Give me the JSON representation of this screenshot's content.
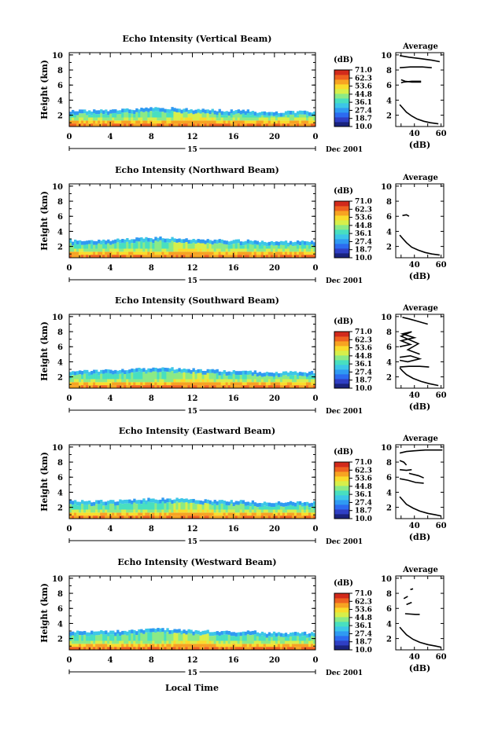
{
  "figure": {
    "xlabel": "Local Time",
    "date_label": "Dec 2001",
    "day_label": "15",
    "colorbar_unit": "(dB)",
    "colorbar_ticks": [
      "71.0",
      "62.3",
      "53.6",
      "44.8",
      "36.1",
      "27.4",
      "18.7",
      "10.0"
    ],
    "colormap": [
      "#1a237e",
      "#2f3fc4",
      "#2c6bf0",
      "#2f9af2",
      "#3cc6e8",
      "#48dfc0",
      "#8bea86",
      "#d7ef4a",
      "#f9dc2b",
      "#f7a322",
      "#ee6220",
      "#d22a1b"
    ]
  },
  "chart_data": [
    {
      "type": "heatmap",
      "title": "Echo Intensity (Vertical Beam)",
      "ylabel": "Height (km)",
      "x_ticks": [
        "0",
        "4",
        "8",
        "12",
        "16",
        "20",
        "0"
      ],
      "y_ticks": [
        "2",
        "4",
        "6",
        "8",
        "10"
      ],
      "xlim": [
        0,
        24
      ],
      "ylim": [
        0.5,
        10.3
      ],
      "echo_top_km": 2.6,
      "side_profile": {
        "title": "Average",
        "xlabel": "(dB)",
        "x_ticks": [
          "40",
          "60"
        ],
        "y_ticks": [
          "2",
          "4",
          "6",
          "8",
          "10"
        ],
        "xlim": [
          26,
          62
        ],
        "ylim": [
          0.5,
          10.3
        ],
        "segments": [
          [
            [
              29,
              3.4
            ],
            [
              31,
              3.0
            ],
            [
              34,
              2.4
            ],
            [
              38,
              1.9
            ],
            [
              42,
              1.5
            ],
            [
              47,
              1.2
            ],
            [
              52,
              1.0
            ],
            [
              58,
              0.85
            ]
          ],
          [
            [
              30,
              6.7
            ],
            [
              33,
              6.5
            ],
            [
              38,
              6.4
            ],
            [
              41,
              6.4
            ],
            [
              45,
              6.4
            ]
          ],
          [
            [
              30,
              6.3
            ],
            [
              32,
              6.4
            ],
            [
              38,
              6.5
            ],
            [
              45,
              6.5
            ]
          ],
          [
            [
              29,
              8.3
            ],
            [
              37,
              8.4
            ],
            [
              46,
              8.4
            ],
            [
              53,
              8.3
            ]
          ],
          [
            [
              29,
              9.9
            ],
            [
              36,
              9.7
            ],
            [
              45,
              9.5
            ],
            [
              53,
              9.3
            ],
            [
              59,
              9.1
            ]
          ]
        ]
      }
    },
    {
      "type": "heatmap",
      "title": "Echo Intensity (Northward Beam)",
      "ylabel": "Height (km)",
      "x_ticks": [
        "0",
        "4",
        "8",
        "12",
        "16",
        "20",
        "0"
      ],
      "y_ticks": [
        "2",
        "4",
        "6",
        "8",
        "10"
      ],
      "xlim": [
        0,
        24
      ],
      "ylim": [
        0.5,
        10.3
      ],
      "echo_top_km": 2.8,
      "side_profile": {
        "title": "Average",
        "xlabel": "(dB)",
        "x_ticks": [
          "40",
          "60"
        ],
        "y_ticks": [
          "2",
          "4",
          "6",
          "8",
          "10"
        ],
        "xlim": [
          26,
          62
        ],
        "ylim": [
          0.5,
          10.3
        ],
        "segments": [
          [
            [
              29,
              3.5
            ],
            [
              31,
              3.1
            ],
            [
              34,
              2.5
            ],
            [
              38,
              1.9
            ],
            [
              43,
              1.5
            ],
            [
              48,
              1.2
            ],
            [
              53,
              1.0
            ],
            [
              59,
              0.85
            ]
          ],
          [
            [
              31,
              6.1
            ],
            [
              34,
              6.2
            ],
            [
              36,
              6.0
            ]
          ]
        ]
      }
    },
    {
      "type": "heatmap",
      "title": "Echo Intensity (Southward Beam)",
      "ylabel": "Height (km)",
      "x_ticks": [
        "0",
        "4",
        "8",
        "12",
        "16",
        "20",
        "0"
      ],
      "y_ticks": [
        "2",
        "4",
        "6",
        "8",
        "10"
      ],
      "xlim": [
        0,
        24
      ],
      "ylim": [
        0.5,
        10.3
      ],
      "echo_top_km": 2.8,
      "side_profile": {
        "title": "Average",
        "xlabel": "(dB)",
        "x_ticks": [
          "40",
          "60"
        ],
        "y_ticks": [
          "2",
          "4",
          "6",
          "8",
          "10"
        ],
        "xlim": [
          26,
          62
        ],
        "ylim": [
          0.5,
          10.3
        ],
        "segments": [
          [
            [
              29,
              3.2
            ],
            [
              31,
              2.8
            ],
            [
              34,
              2.3
            ],
            [
              39,
              1.8
            ],
            [
              45,
              1.4
            ],
            [
              51,
              1.1
            ],
            [
              58,
              0.85
            ]
          ],
          [
            [
              29,
              3.3
            ],
            [
              36,
              3.4
            ],
            [
              44,
              3.4
            ],
            [
              51,
              3.3
            ]
          ],
          [
            [
              29,
              4.6
            ],
            [
              37,
              4.8
            ],
            [
              44,
              4.4
            ],
            [
              35,
              4.0
            ],
            [
              29,
              4.2
            ]
          ],
          [
            [
              29,
              6.0
            ],
            [
              37,
              6.3
            ],
            [
              30,
              6.8
            ],
            [
              40,
              7.2
            ],
            [
              31,
              7.7
            ],
            [
              38,
              8.0
            ],
            [
              30,
              7.4
            ],
            [
              43,
              6.4
            ],
            [
              35,
              5.6
            ],
            [
              44,
              5.0
            ]
          ],
          [
            [
              31,
              9.9
            ],
            [
              36,
              9.7
            ],
            [
              42,
              9.4
            ],
            [
              46,
              9.2
            ],
            [
              50,
              9.0
            ]
          ]
        ]
      }
    },
    {
      "type": "heatmap",
      "title": "Echo Intensity (Eastward Beam)",
      "ylabel": "Height (km)",
      "x_ticks": [
        "0",
        "4",
        "8",
        "12",
        "16",
        "20",
        "0"
      ],
      "y_ticks": [
        "2",
        "4",
        "6",
        "8",
        "10"
      ],
      "xlim": [
        0,
        24
      ],
      "ylim": [
        0.5,
        10.3
      ],
      "echo_top_km": 2.8,
      "side_profile": {
        "title": "Average",
        "xlabel": "(dB)",
        "x_ticks": [
          "40",
          "60"
        ],
        "y_ticks": [
          "2",
          "4",
          "6",
          "8",
          "10"
        ],
        "xlim": [
          26,
          62
        ],
        "ylim": [
          0.5,
          10.3
        ],
        "segments": [
          [
            [
              29,
              3.4
            ],
            [
              31,
              3.0
            ],
            [
              34,
              2.4
            ],
            [
              39,
              1.9
            ],
            [
              44,
              1.5
            ],
            [
              50,
              1.2
            ],
            [
              56,
              1.0
            ],
            [
              60,
              0.85
            ]
          ],
          [
            [
              29,
              5.8
            ],
            [
              35,
              5.6
            ],
            [
              41,
              5.3
            ],
            [
              47,
              5.2
            ]
          ],
          [
            [
              36,
              6.5
            ],
            [
              43,
              6.2
            ],
            [
              47,
              5.9
            ]
          ],
          [
            [
              29,
              7.0
            ],
            [
              34,
              6.9
            ],
            [
              38,
              7.0
            ]
          ],
          [
            [
              29,
              8.2
            ],
            [
              32,
              8.0
            ],
            [
              34,
              7.6
            ]
          ],
          [
            [
              29,
              9.2
            ],
            [
              34,
              9.4
            ],
            [
              40,
              9.5
            ],
            [
              48,
              9.6
            ],
            [
              56,
              9.6
            ],
            [
              61,
              9.6
            ]
          ]
        ]
      }
    },
    {
      "type": "heatmap",
      "title": "Echo Intensity (Westward Beam)",
      "ylabel": "Height (km)",
      "x_ticks": [
        "0",
        "4",
        "8",
        "12",
        "16",
        "20",
        "0"
      ],
      "y_ticks": [
        "2",
        "4",
        "6",
        "8",
        "10"
      ],
      "xlim": [
        0,
        24
      ],
      "ylim": [
        0.5,
        10.3
      ],
      "echo_top_km": 2.9,
      "side_profile": {
        "title": "Average",
        "xlabel": "(dB)",
        "x_ticks": [
          "40",
          "60"
        ],
        "y_ticks": [
          "2",
          "4",
          "6",
          "8",
          "10"
        ],
        "xlim": [
          26,
          62
        ],
        "ylim": [
          0.5,
          10.3
        ],
        "segments": [
          [
            [
              29,
              3.5
            ],
            [
              31,
              3.1
            ],
            [
              34,
              2.5
            ],
            [
              39,
              1.9
            ],
            [
              44,
              1.5
            ],
            [
              50,
              1.2
            ],
            [
              56,
              1.0
            ],
            [
              60,
              0.85
            ]
          ],
          [
            [
              33,
              5.3
            ],
            [
              41,
              5.2
            ],
            [
              44,
              5.2
            ]
          ],
          [
            [
              34,
              6.5
            ],
            [
              38,
              6.8
            ]
          ],
          [
            [
              32,
              7.3
            ],
            [
              35,
              7.6
            ]
          ],
          [
            [
              37,
              8.5
            ],
            [
              39,
              8.6
            ]
          ]
        ]
      }
    }
  ]
}
